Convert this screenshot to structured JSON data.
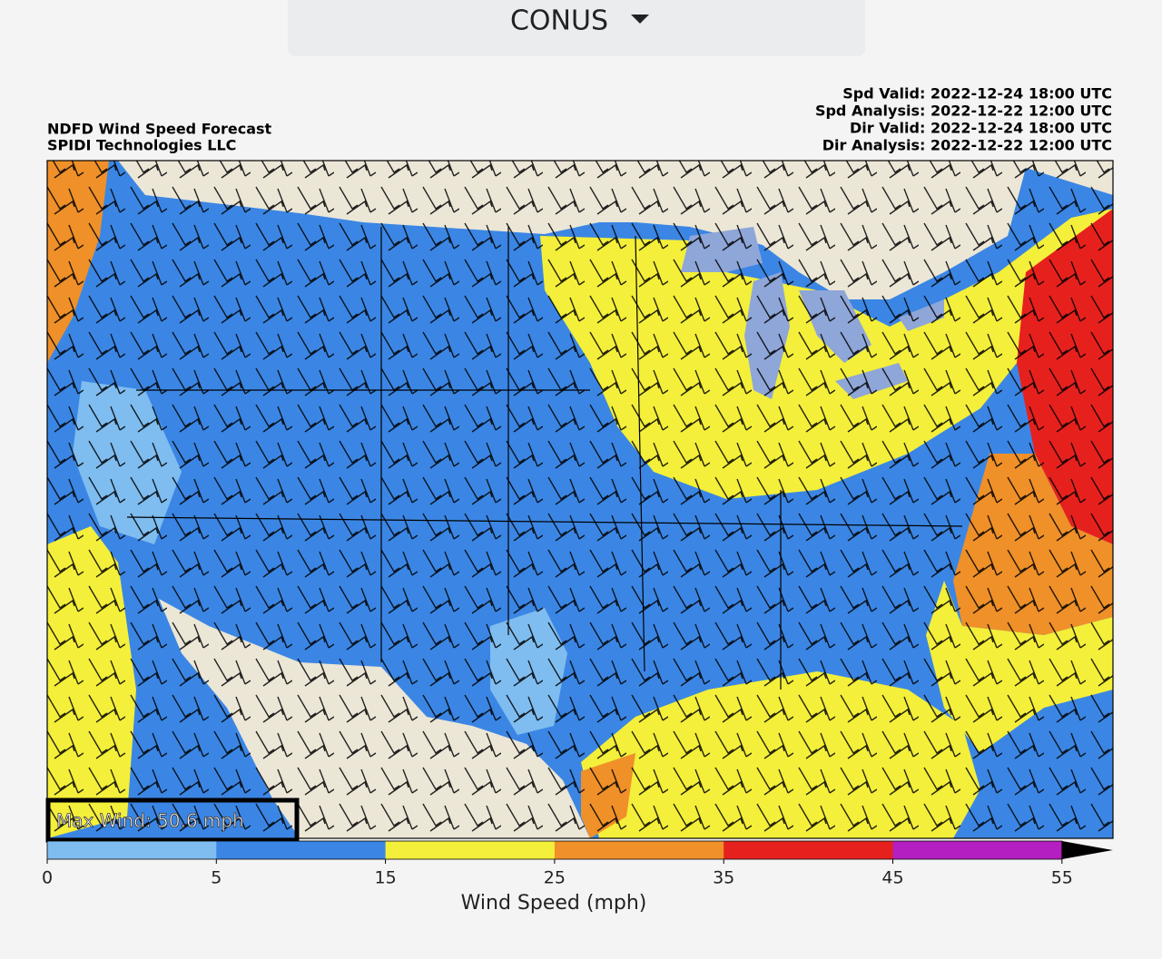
{
  "dropdown": {
    "label": "CONUS"
  },
  "header": {
    "title": "NDFD Wind Speed Forecast",
    "source": "SPIDI Technologies LLC",
    "times": [
      "Spd Valid: 2022-12-24 18:00 UTC",
      "Spd Analysis: 2022-12-22 12:00 UTC",
      "Dir Valid: 2022-12-24 18:00 UTC",
      "Dir Analysis: 2022-12-22 12:00 UTC"
    ]
  },
  "map": {
    "max_wind": "Max Wind: 50.6 mph"
  },
  "colorbar": {
    "label": "Wind Speed (mph)",
    "bounds": [
      0,
      5,
      15,
      25,
      35,
      45,
      55
    ],
    "colors": [
      "#7fbdf0",
      "#3b86e4",
      "#f4ef3a",
      "#ef9029",
      "#e6211d",
      "#b31fc0"
    ],
    "extend_color": "#000000"
  }
}
